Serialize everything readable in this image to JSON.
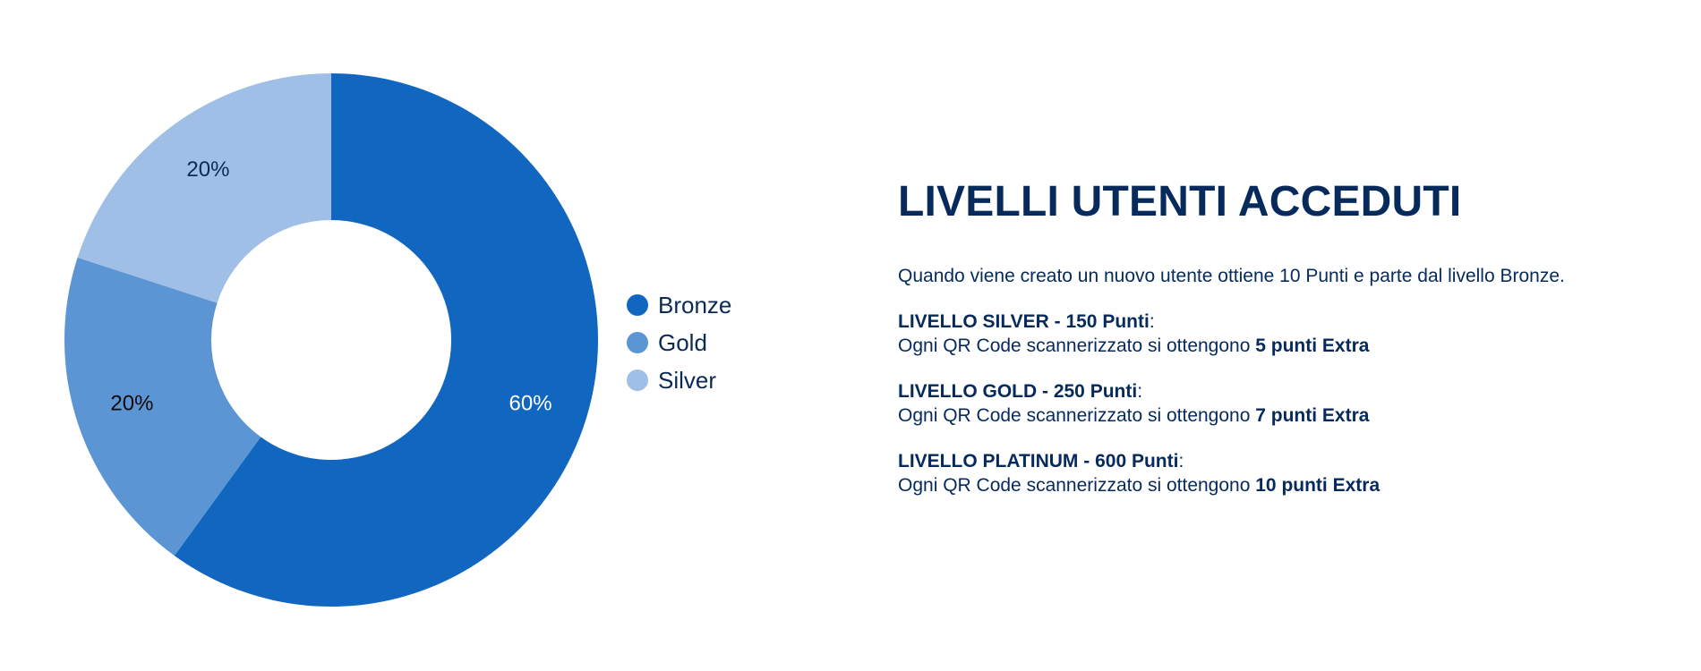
{
  "chart_data": {
    "type": "pie",
    "title": "",
    "categories": [
      "Bronze",
      "Gold",
      "Silver"
    ],
    "values": [
      60,
      20,
      20
    ],
    "labels": [
      "60%",
      "20%",
      "20%"
    ],
    "colors": [
      "#1166bf",
      "#5b95d3",
      "#a0bfe6"
    ],
    "label_colors": [
      "#ffffff",
      "#0b0b0b",
      "#0b2a55"
    ],
    "hole": "donut",
    "legend": "right"
  },
  "info": {
    "title": "LIVELLI UTENTI ACCEDUTI",
    "intro": "Quando viene creato un nuovo utente ottiene 10 Punti e parte dal livello Bronze.",
    "levels": [
      {
        "title": "LIVELLO SILVER - 150 Punti",
        "colon": ":",
        "text": "Ogni QR Code scannerizzato si ottengono",
        "extra": "5 punti Extra"
      },
      {
        "title": "LIVELLO GOLD - 250 Punti",
        "colon": ":",
        "text": "Ogni QR Code scannerizzato si ottengono",
        "extra": "7 punti Extra"
      },
      {
        "title": "LIVELLO PLATINUM - 600 Punti",
        "colon": ":",
        "text": "Ogni QR Code scannerizzato si ottengono",
        "extra": "10 punti Extra"
      }
    ]
  }
}
